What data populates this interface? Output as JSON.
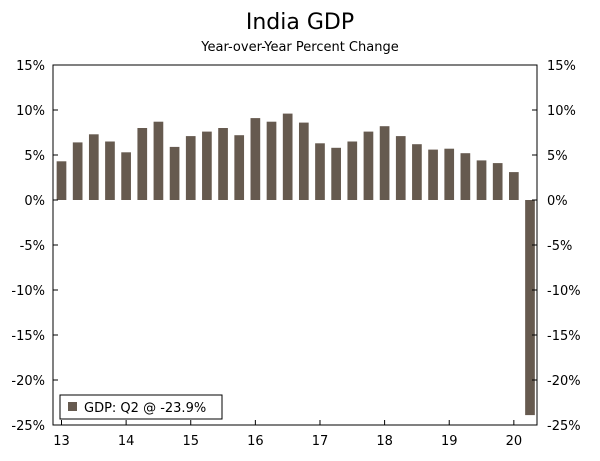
{
  "chart_data": {
    "type": "bar",
    "title": "India GDP",
    "subtitle": "Year-over-Year Percent Change",
    "xlabel": "",
    "ylabel": "",
    "ylim": [
      -25,
      15
    ],
    "yticks": [
      15,
      10,
      5,
      0,
      -5,
      -10,
      -15,
      -20,
      -25
    ],
    "ytick_labels": [
      "15%",
      "10%",
      "5%",
      "0%",
      "-5%",
      "-10%",
      "-15%",
      "-20%",
      "-25%"
    ],
    "xtick_labels": [
      "13",
      "14",
      "15",
      "16",
      "17",
      "18",
      "19",
      "20"
    ],
    "grid": false,
    "legend": {
      "placement": "bottom-left",
      "label": "GDP: Q2 @ -23.9%"
    },
    "bar_color": "#665a4f",
    "series": [
      {
        "name": "GDP",
        "categories": [
          "2013 Q1",
          "2013 Q2",
          "2013 Q3",
          "2013 Q4",
          "2014 Q1",
          "2014 Q2",
          "2014 Q3",
          "2014 Q4",
          "2015 Q1",
          "2015 Q2",
          "2015 Q3",
          "2015 Q4",
          "2016 Q1",
          "2016 Q2",
          "2016 Q3",
          "2016 Q4",
          "2017 Q1",
          "2017 Q2",
          "2017 Q3",
          "2017 Q4",
          "2018 Q1",
          "2018 Q2",
          "2018 Q3",
          "2018 Q4",
          "2019 Q1",
          "2019 Q2",
          "2019 Q3",
          "2019 Q4",
          "2020 Q1",
          "2020 Q2"
        ],
        "values": [
          4.3,
          6.4,
          7.3,
          6.5,
          5.3,
          8.0,
          8.7,
          5.9,
          7.1,
          7.6,
          8.0,
          7.2,
          9.1,
          8.7,
          9.6,
          8.6,
          6.3,
          5.8,
          6.5,
          7.6,
          8.2,
          7.1,
          6.2,
          5.6,
          5.7,
          5.2,
          4.4,
          4.1,
          3.1,
          -23.9
        ]
      }
    ]
  }
}
